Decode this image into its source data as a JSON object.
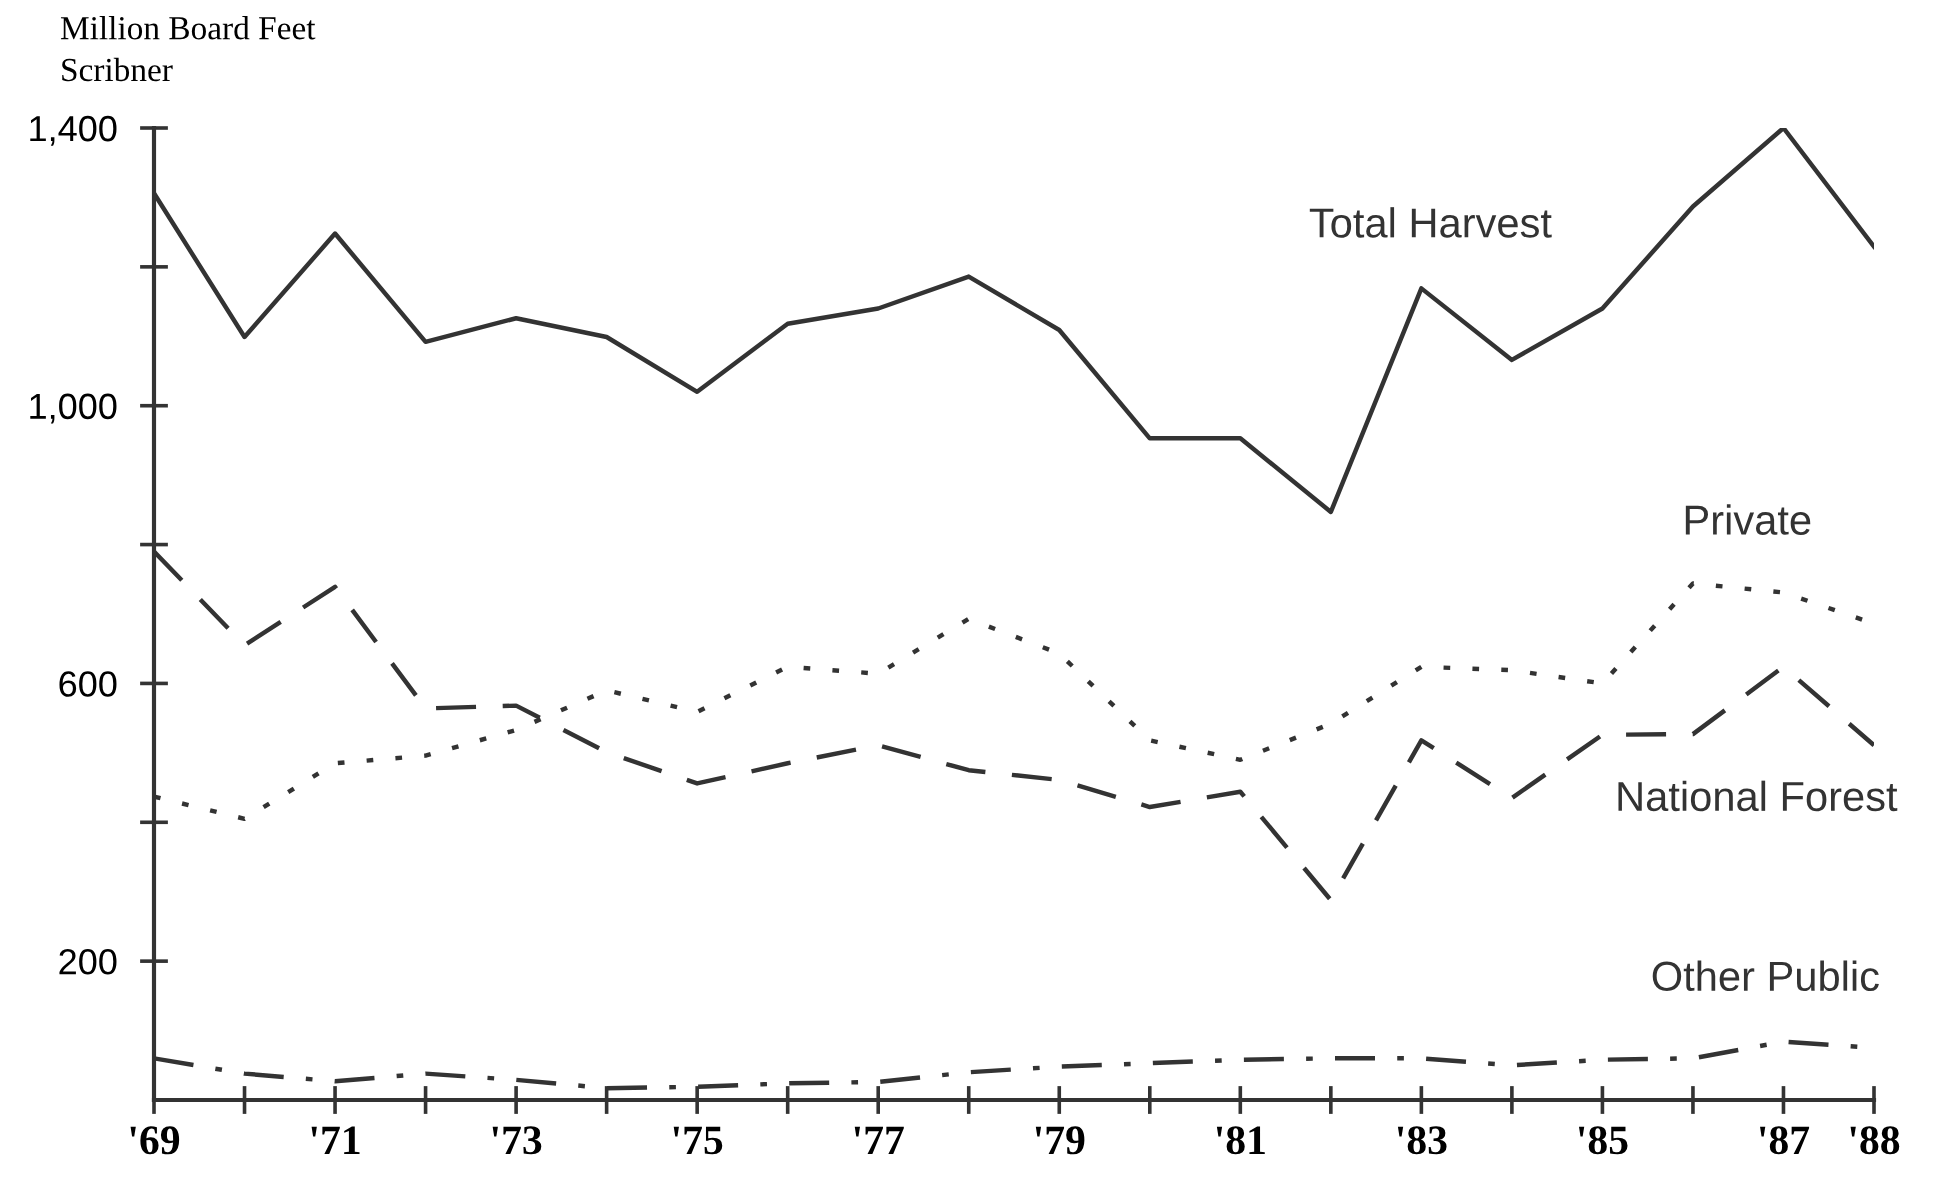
{
  "chart_data": {
    "type": "line",
    "ylabel": "Million Board Feet\nScribner",
    "x": [
      1969,
      1970,
      1971,
      1972,
      1973,
      1974,
      1975,
      1976,
      1977,
      1978,
      1979,
      1980,
      1981,
      1982,
      1983,
      1984,
      1985,
      1986,
      1987,
      1988
    ],
    "xlim": [
      1969,
      1988
    ],
    "xticks": [
      {
        "value": 1969,
        "label": "'69"
      },
      {
        "value": 1970,
        "label": null
      },
      {
        "value": 1971,
        "label": "'71"
      },
      {
        "value": 1972,
        "label": null
      },
      {
        "value": 1973,
        "label": "'73"
      },
      {
        "value": 1974,
        "label": null
      },
      {
        "value": 1975,
        "label": "'75"
      },
      {
        "value": 1976,
        "label": null
      },
      {
        "value": 1977,
        "label": "'77"
      },
      {
        "value": 1978,
        "label": null
      },
      {
        "value": 1979,
        "label": "'79"
      },
      {
        "value": 1980,
        "label": null
      },
      {
        "value": 1981,
        "label": "'81"
      },
      {
        "value": 1982,
        "label": null
      },
      {
        "value": 1983,
        "label": "'83"
      },
      {
        "value": 1984,
        "label": null
      },
      {
        "value": 1985,
        "label": "'85"
      },
      {
        "value": 1986,
        "label": null
      },
      {
        "value": 1987,
        "label": "'87"
      },
      {
        "value": 1988,
        "label": "'88"
      }
    ],
    "ylim": [
      0,
      1400
    ],
    "yticks": [
      200,
      {
        "value": 400,
        "label": null
      },
      600,
      {
        "value": 800,
        "label": null
      },
      {
        "value": 1000,
        "label": "1,000"
      },
      {
        "value": 1200,
        "label": null
      },
      {
        "value": 1400,
        "label": "1,400"
      }
    ],
    "grid": false,
    "legend": false,
    "marker": "none",
    "series": [
      {
        "name": "Total Harvest",
        "color": "#333333",
        "line_style": "solid",
        "values": [
          1306,
          1099,
          1248,
          1092,
          1126,
          1099,
          1020,
          1118,
          1140,
          1186,
          1109,
          953,
          953,
          847,
          1169,
          1066,
          1140,
          1287,
          1400,
          1229
        ]
      },
      {
        "name": "Private",
        "color": "#333333",
        "line_style": "dotted",
        "values": [
          437,
          405,
          485,
          496,
          533,
          590,
          559,
          624,
          614,
          693,
          643,
          518,
          490,
          542,
          624,
          619,
          600,
          744,
          731,
          686
        ]
      },
      {
        "name": "National Forest",
        "color": "#333333",
        "line_style": "dashed",
        "values": [
          790,
          655,
          739,
          564,
          568,
          501,
          456,
          485,
          511,
          475,
          461,
          422,
          444,
          288,
          518,
          435,
          526,
          527,
          624,
          511
        ]
      },
      {
        "name": "Other Public",
        "color": "#333333",
        "line_style": "dashdot",
        "values": [
          60,
          38,
          27,
          38,
          29,
          17,
          19,
          24,
          26,
          40,
          48,
          53,
          58,
          60,
          60,
          50,
          58,
          60,
          84,
          75
        ]
      }
    ]
  }
}
